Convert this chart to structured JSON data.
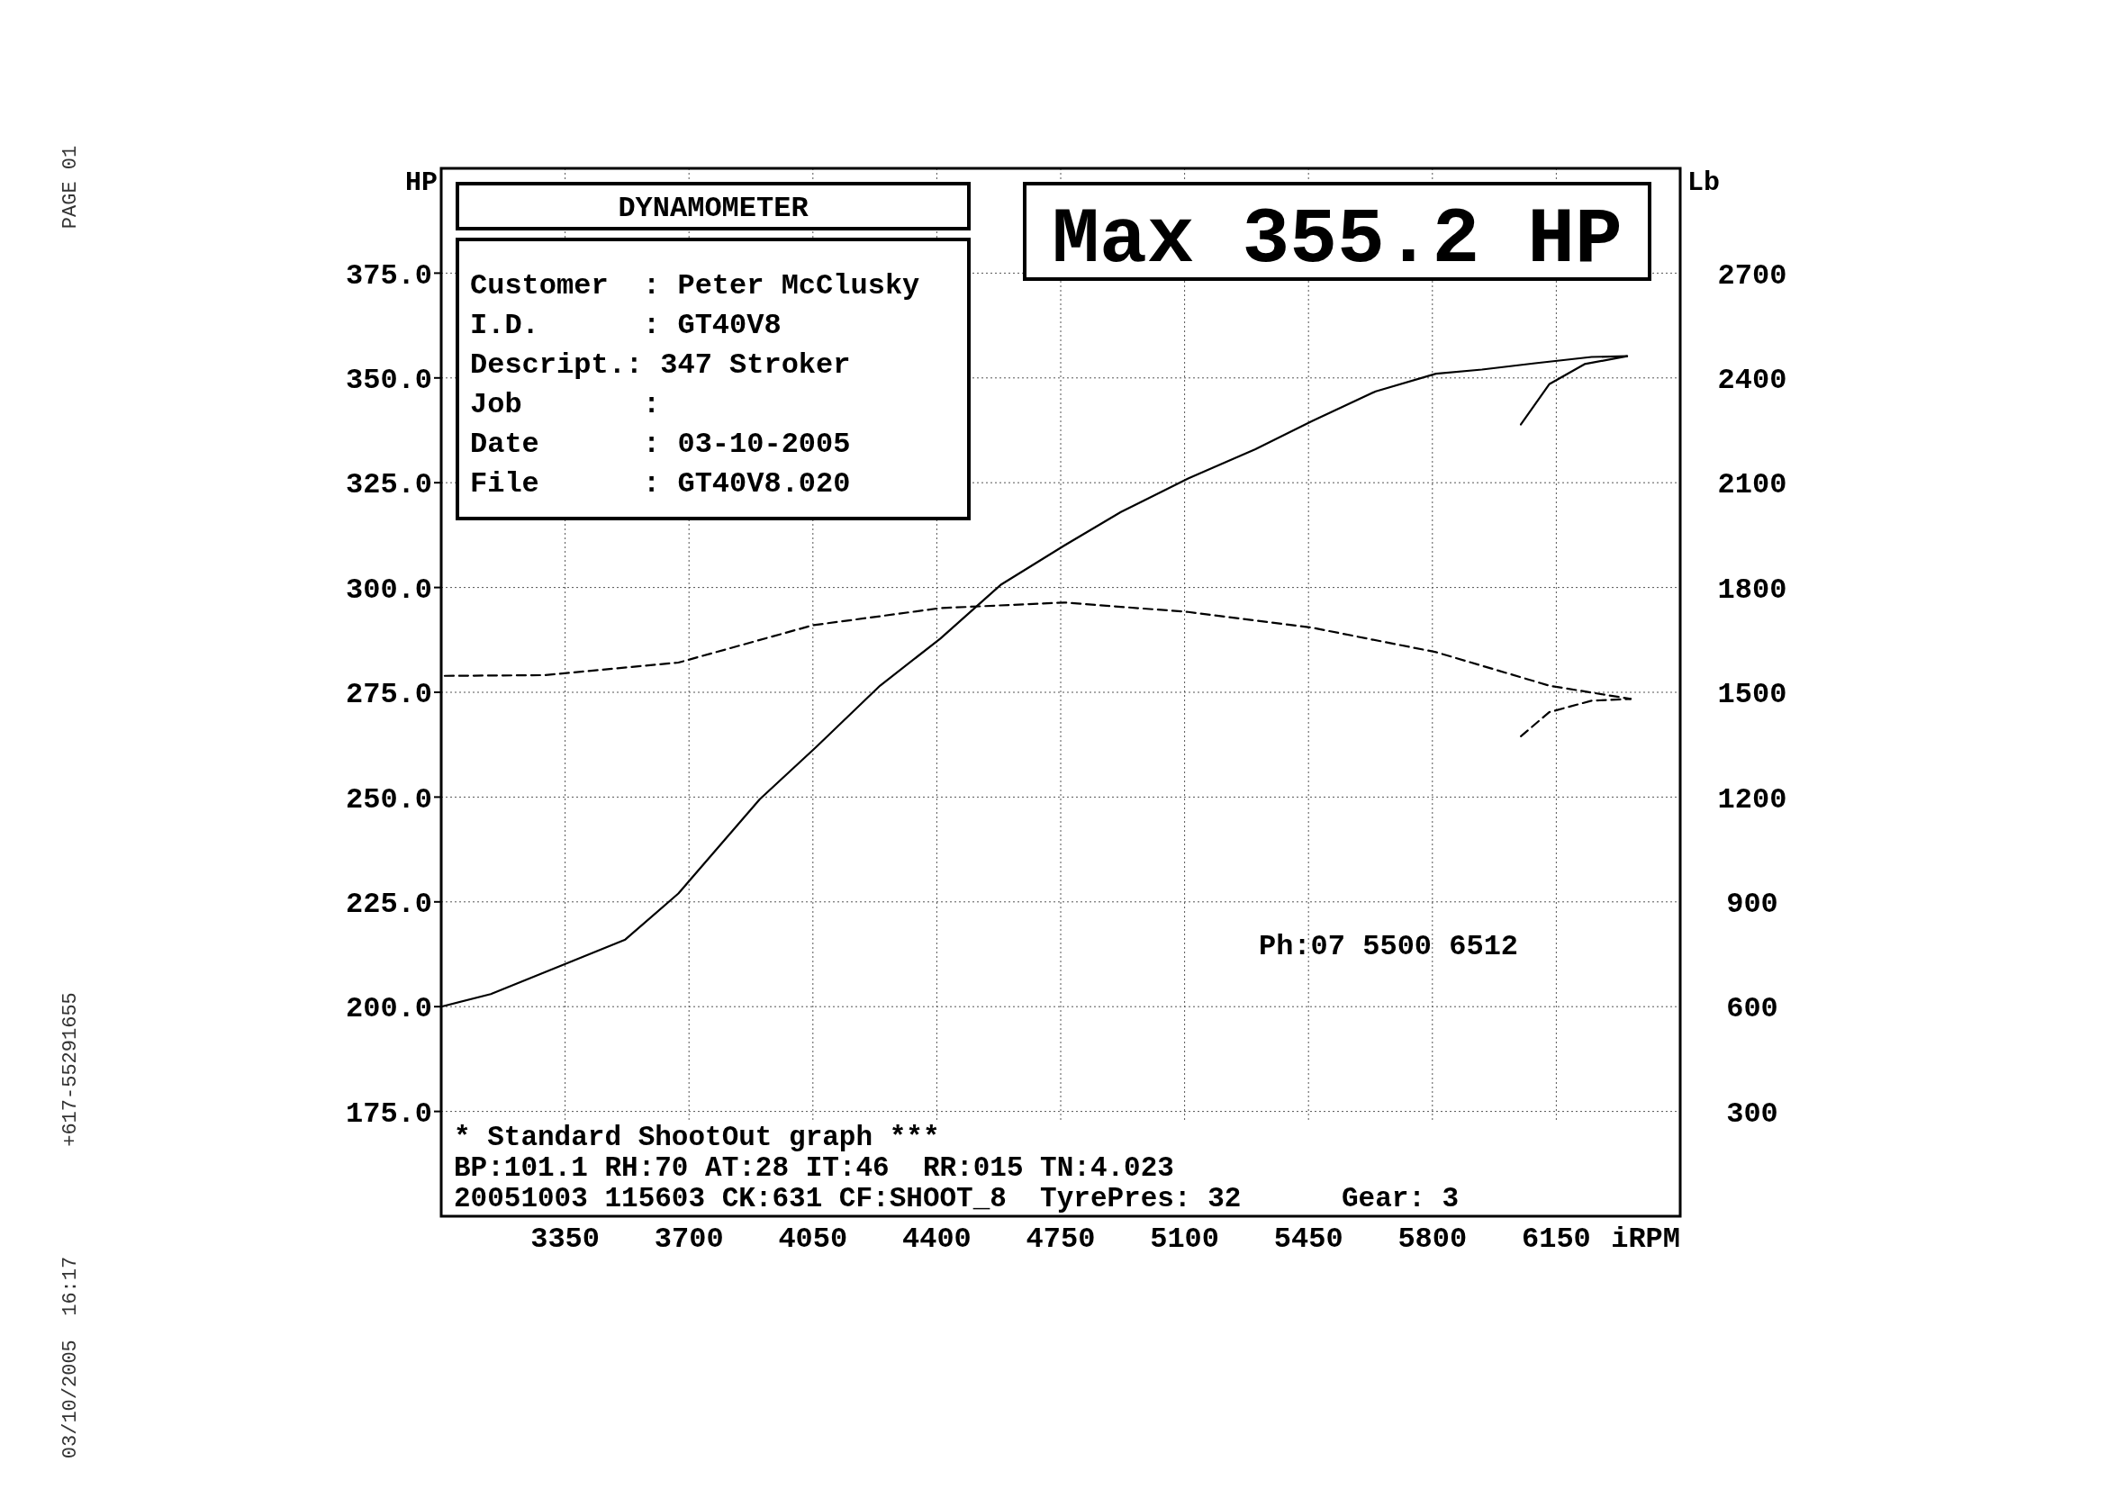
{
  "chart_data": {
    "type": "line",
    "title": "DYNAMOMETER",
    "ylabel": "HP",
    "y2label": "Lb",
    "xlabel": "iRPM",
    "xlim": [
      3000,
      6500
    ],
    "xticks": [
      3350,
      3700,
      4050,
      4400,
      4750,
      5100,
      5450,
      5800,
      6150
    ],
    "ylim": [
      150,
      400
    ],
    "yticks": [
      {
        "value": 175,
        "label": "175.0"
      },
      {
        "value": 200,
        "label": "200.0"
      },
      {
        "value": 225,
        "label": "225.0"
      },
      {
        "value": 250,
        "label": "250.0"
      },
      {
        "value": 275,
        "label": "275.0"
      },
      {
        "value": 300,
        "label": "300.0"
      },
      {
        "value": 325,
        "label": "325.0"
      },
      {
        "value": 350,
        "label": "350.0"
      },
      {
        "value": 375,
        "label": "375.0"
      }
    ],
    "y2lim": [
      0,
      3000
    ],
    "y2ticks": [
      300,
      600,
      900,
      1200,
      1500,
      1800,
      2100,
      2400,
      2700
    ],
    "grid": true,
    "series": [
      {
        "color": "#000000",
        "line_style": "solid",
        "x": [
          3000,
          3140,
          3360,
          3520,
          3670,
          3900,
          4060,
          4240,
          4410,
          4580,
          4760,
          4920,
          5110,
          5300,
          5460,
          5640,
          5810,
          5940,
          6090,
          6250,
          6350
        ],
        "values": [
          200,
          203,
          210.5,
          216,
          227,
          249.5,
          262,
          276.6,
          287.8,
          300.6,
          310,
          318,
          326,
          333,
          339.7,
          346.8,
          351,
          352,
          353.5,
          355,
          355.2
        ]
      },
      {
        "color": "#000000",
        "line_style": "solid",
        "x": [
          6050,
          6130,
          6230,
          6350
        ],
        "values": [
          338.9,
          348.5,
          353.3,
          355.2
        ]
      },
      {
        "color": "#000000",
        "line_style": "dashed",
        "axis": "y2",
        "x": [
          3010,
          3290,
          3670,
          4050,
          4410,
          4760,
          5110,
          5460,
          5810,
          6130,
          6360
        ],
        "values": [
          1547,
          1549,
          1585,
          1692,
          1741,
          1757,
          1730,
          1685,
          1615,
          1519,
          1481
        ]
      },
      {
        "color": "#000000",
        "line_style": "dashed",
        "axis": "y2",
        "x": [
          6050,
          6130,
          6250,
          6360
        ],
        "values": [
          1374,
          1443,
          1476,
          1481
        ]
      }
    ],
    "annotations": [
      "Max 355.2 HP",
      "Customer  : Peter McClusky",
      "I.D.      : GT40V8",
      "Descript.: 347 Stroker",
      "Job       :",
      "Date      : 03-10-2005",
      "File      : GT40V8.020",
      "* Standard ShootOut graph ***",
      "BP:101.1 RH:70 AT:28 IT:46  RR:015 TN:4.023",
      "20051003 115603 CK:631 CF:SHOOT_8  TyrePres: 32      Gear: 3",
      "Ph:07 5500 6512",
      "PAGE 01",
      "+617-55291655",
      "03/10/2005  16:17"
    ]
  }
}
